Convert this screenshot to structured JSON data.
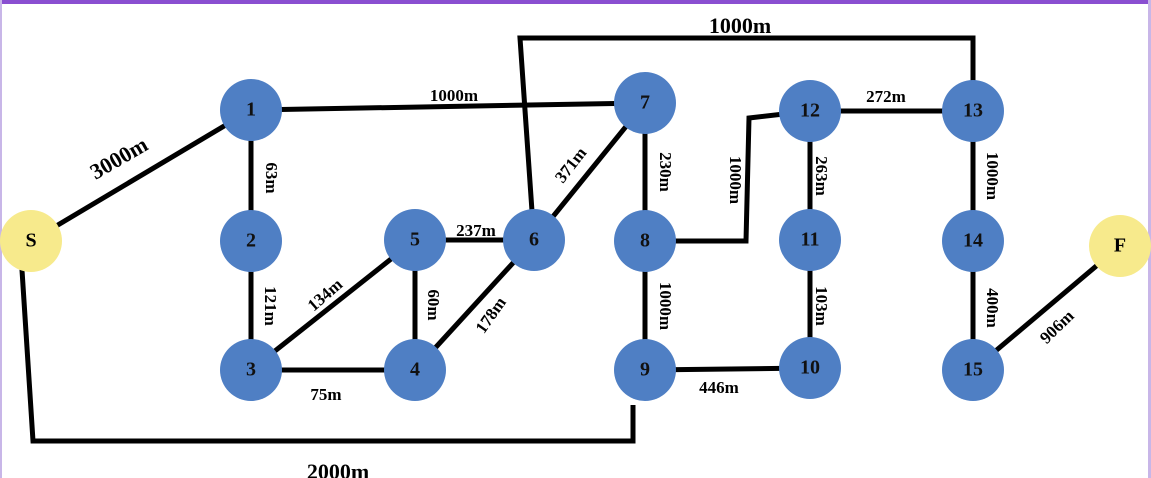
{
  "colors": {
    "node_fill": "#4f7fc4",
    "terminal_fill": "#f7ea8c",
    "edge": "#000000",
    "frame_top": "#8a4fd1",
    "frame_side": "#c8b6e8"
  },
  "nodes": [
    {
      "id": "S",
      "label": "S",
      "kind": "terminal"
    },
    {
      "id": "1",
      "label": "1",
      "kind": "node"
    },
    {
      "id": "2",
      "label": "2",
      "kind": "node"
    },
    {
      "id": "3",
      "label": "3",
      "kind": "node"
    },
    {
      "id": "4",
      "label": "4",
      "kind": "node"
    },
    {
      "id": "5",
      "label": "5",
      "kind": "node"
    },
    {
      "id": "6",
      "label": "6",
      "kind": "node"
    },
    {
      "id": "7",
      "label": "7",
      "kind": "node"
    },
    {
      "id": "8",
      "label": "8",
      "kind": "node"
    },
    {
      "id": "9",
      "label": "9",
      "kind": "node"
    },
    {
      "id": "10",
      "label": "10",
      "kind": "node"
    },
    {
      "id": "11",
      "label": "11",
      "kind": "node"
    },
    {
      "id": "12",
      "label": "12",
      "kind": "node"
    },
    {
      "id": "13",
      "label": "13",
      "kind": "node"
    },
    {
      "id": "14",
      "label": "14",
      "kind": "node"
    },
    {
      "id": "15",
      "label": "15",
      "kind": "node"
    },
    {
      "id": "F",
      "label": "F",
      "kind": "terminal"
    }
  ],
  "edges": [
    {
      "id": "S-1",
      "from": "S",
      "to": "1",
      "label": "3000m"
    },
    {
      "id": "S-9",
      "from": "S",
      "to": "9",
      "label": "2000m"
    },
    {
      "id": "1-7",
      "from": "1",
      "to": "7",
      "label": "1000m"
    },
    {
      "id": "1-2",
      "from": "1",
      "to": "2",
      "label": "63m"
    },
    {
      "id": "2-3",
      "from": "2",
      "to": "3",
      "label": "121m"
    },
    {
      "id": "3-5",
      "from": "3",
      "to": "5",
      "label": "134m"
    },
    {
      "id": "3-4",
      "from": "3",
      "to": "4",
      "label": "75m"
    },
    {
      "id": "5-4",
      "from": "5",
      "to": "4",
      "label": "60m"
    },
    {
      "id": "5-6",
      "from": "5",
      "to": "6",
      "label": "237m"
    },
    {
      "id": "4-6",
      "from": "4",
      "to": "6",
      "label": "178m"
    },
    {
      "id": "6-7",
      "from": "6",
      "to": "7",
      "label": "371m"
    },
    {
      "id": "6-13",
      "from": "6",
      "to": "13",
      "label": "1000m"
    },
    {
      "id": "7-8",
      "from": "7",
      "to": "8",
      "label": "230m"
    },
    {
      "id": "8-9",
      "from": "8",
      "to": "9",
      "label": "1000m"
    },
    {
      "id": "8-12",
      "from": "8",
      "to": "12",
      "label": "1000m"
    },
    {
      "id": "9-10",
      "from": "9",
      "to": "10",
      "label": "446m"
    },
    {
      "id": "12-13",
      "from": "12",
      "to": "13",
      "label": "272m"
    },
    {
      "id": "12-11",
      "from": "12",
      "to": "11",
      "label": "263m"
    },
    {
      "id": "11-10",
      "from": "11",
      "to": "10",
      "label": "103m"
    },
    {
      "id": "13-14",
      "from": "13",
      "to": "14",
      "label": "1000m"
    },
    {
      "id": "14-15",
      "from": "14",
      "to": "15",
      "label": "400m"
    },
    {
      "id": "15-F",
      "from": "15",
      "to": "F",
      "label": "906m"
    }
  ]
}
